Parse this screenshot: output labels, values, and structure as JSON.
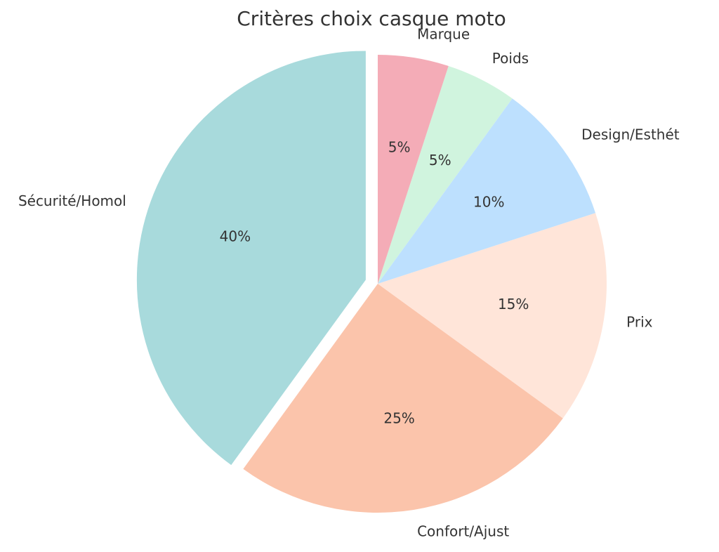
{
  "chart_data": {
    "type": "pie",
    "title": "Critères choix casque moto",
    "categories": [
      "Sécurité/Homol",
      "Confort/Ajust",
      "Prix",
      "Design/Esthét",
      "Poids",
      "Marque"
    ],
    "values": [
      40,
      25,
      15,
      10,
      5,
      5
    ],
    "value_labels": [
      "40%",
      "25%",
      "15%",
      "10%",
      "5%",
      "5%"
    ],
    "colors": [
      "#a8dadc",
      "#fbc4ab",
      "#ffe5d9",
      "#bde0fe",
      "#d0f4de",
      "#f4acb7"
    ],
    "start_angle_deg": 90,
    "direction": "counterclockwise",
    "exploded": [
      "Sécurité/Homol"
    ],
    "legend": "none"
  }
}
